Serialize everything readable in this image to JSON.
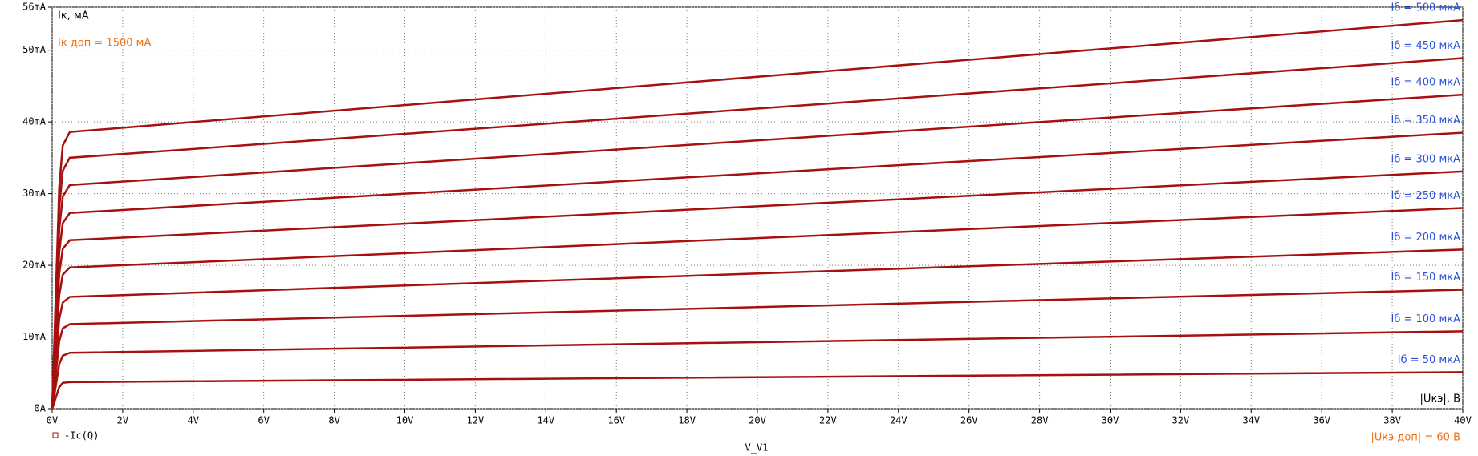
{
  "chart_data": {
    "type": "line",
    "y_axis_label": "Iк, мА",
    "x_axis_label": "|Uкэ|, В",
    "x_variable": "V_V1",
    "legend": "-Ic(Q)",
    "annotations": [
      "Iк доп = 1500 мА",
      "|Uкэ доп| = 60 В"
    ],
    "x": [
      0,
      0.1,
      0.2,
      0.3,
      0.5,
      40
    ],
    "xlim": [
      0,
      40
    ],
    "xticks": [
      {
        "value": 0,
        "label": "0V"
      },
      {
        "value": 2,
        "label": "2V"
      },
      {
        "value": 4,
        "label": "4V"
      },
      {
        "value": 6,
        "label": "6V"
      },
      {
        "value": 8,
        "label": "8V"
      },
      {
        "value": 10,
        "label": "10V"
      },
      {
        "value": 12,
        "label": "12V"
      },
      {
        "value": 14,
        "label": "14V"
      },
      {
        "value": 16,
        "label": "16V"
      },
      {
        "value": 18,
        "label": "18V"
      },
      {
        "value": 20,
        "label": "20V"
      },
      {
        "value": 22,
        "label": "22V"
      },
      {
        "value": 24,
        "label": "24V"
      },
      {
        "value": 26,
        "label": "26V"
      },
      {
        "value": 28,
        "label": "28V"
      },
      {
        "value": 30,
        "label": "30V"
      },
      {
        "value": 32,
        "label": "32V"
      },
      {
        "value": 34,
        "label": "34V"
      },
      {
        "value": 36,
        "label": "36V"
      },
      {
        "value": 38,
        "label": "38V"
      },
      {
        "value": 40,
        "label": "40V"
      }
    ],
    "ylim": [
      0,
      56
    ],
    "yticks": [
      {
        "value": 0,
        "label": "0A"
      },
      {
        "value": 10,
        "label": "10mA"
      },
      {
        "value": 20,
        "label": "20mA"
      },
      {
        "value": 30,
        "label": "30mA"
      },
      {
        "value": 40,
        "label": "40mA"
      },
      {
        "value": 50,
        "label": "50mA"
      },
      {
        "value": 56,
        "label": "56mA"
      }
    ],
    "grid": true,
    "series": [
      {
        "name": "Iб = 50 мкА",
        "color": "#a80f0f",
        "values": [
          0,
          1.5,
          3.0,
          3.6,
          3.7,
          5.1
        ]
      },
      {
        "name": "Iб = 100 мкА",
        "color": "#a80f0f",
        "values": [
          0,
          3.1,
          6.2,
          7.4,
          7.8,
          10.8
        ]
      },
      {
        "name": "Iб = 150 мкА",
        "color": "#a80f0f",
        "values": [
          0,
          4.7,
          9.4,
          11.2,
          11.8,
          16.6
        ]
      },
      {
        "name": "Iб = 200 мкА",
        "color": "#a80f0f",
        "values": [
          0,
          6.2,
          12.5,
          14.8,
          15.6,
          22.2
        ]
      },
      {
        "name": "Iб = 250 мкА",
        "color": "#a80f0f",
        "values": [
          0,
          7.9,
          15.8,
          18.7,
          19.7,
          28.0
        ]
      },
      {
        "name": "Iб = 300 мкА",
        "color": "#a80f0f",
        "values": [
          0,
          9.4,
          18.8,
          22.3,
          23.5,
          33.1
        ]
      },
      {
        "name": "Iб = 350 мкА",
        "color": "#a80f0f",
        "values": [
          0,
          10.9,
          21.8,
          25.9,
          27.3,
          38.5
        ]
      },
      {
        "name": "Iб = 400 мкА",
        "color": "#a80f0f",
        "values": [
          0,
          12.5,
          25.0,
          29.6,
          31.2,
          43.8
        ]
      },
      {
        "name": "Iб = 450 мкА",
        "color": "#a80f0f",
        "values": [
          0,
          14.0,
          28.0,
          33.2,
          35.0,
          48.9
        ]
      },
      {
        "name": "Iб = 500 мкА",
        "color": "#a80f0f",
        "values": [
          0,
          15.4,
          30.9,
          36.7,
          38.6,
          54.2
        ]
      }
    ]
  }
}
